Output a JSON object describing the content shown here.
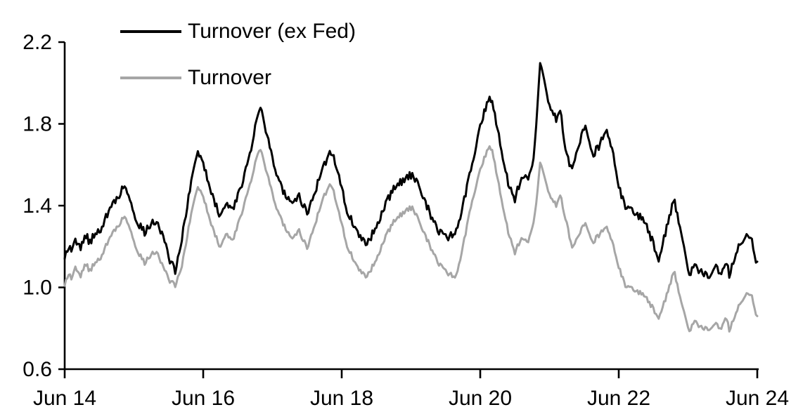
{
  "chart_data": {
    "type": "line",
    "title": "",
    "xlabel": "",
    "ylabel": "",
    "grid": false,
    "background": "#ffffff",
    "axis_color": "#000000",
    "x_axis": {
      "tick_labels": [
        "Jun 14",
        "Jun 16",
        "Jun 18",
        "Jun 20",
        "Jun 22",
        "Jun 24"
      ],
      "tick_years": [
        0,
        2,
        4,
        6,
        8,
        10
      ],
      "range_years": [
        0,
        10
      ]
    },
    "y_axis": {
      "tick_labels": [
        "0.6",
        "1.0",
        "1.4",
        "1.8",
        "2.2"
      ],
      "ticks": [
        0.6,
        1.0,
        1.4,
        1.8,
        2.2
      ],
      "range": [
        0.6,
        2.2
      ]
    },
    "legend": {
      "position": "top-left"
    },
    "x": [
      0,
      0.06,
      0.1,
      0.16,
      0.22,
      0.3,
      0.36,
      0.44,
      0.52,
      0.62,
      0.72,
      0.87,
      0.95,
      1.05,
      1.15,
      1.25,
      1.33,
      1.42,
      1.52,
      1.6,
      1.7,
      1.8,
      1.9,
      1.94,
      2.02,
      2.12,
      2.25,
      2.33,
      2.42,
      2.55,
      2.67,
      2.8,
      2.86,
      2.95,
      3.05,
      3.17,
      3.28,
      3.38,
      3.5,
      3.62,
      3.75,
      3.85,
      3.95,
      4.08,
      4.22,
      4.35,
      4.48,
      4.62,
      4.75,
      4.93,
      5.02,
      5.12,
      5.25,
      5.4,
      5.52,
      5.65,
      5.75,
      5.88,
      6.02,
      6.12,
      6.17,
      6.28,
      6.4,
      6.5,
      6.6,
      6.68,
      6.76,
      6.82,
      6.87,
      6.92,
      6.97,
      7.03,
      7.1,
      7.16,
      7.25,
      7.33,
      7.42,
      7.52,
      7.62,
      7.7,
      7.82,
      7.92,
      8.02,
      8.1,
      8.2,
      8.32,
      8.42,
      8.52,
      8.58,
      8.68,
      8.8,
      8.9,
      9.02,
      9.1,
      9.2,
      9.3,
      9.4,
      9.48,
      9.54,
      9.6,
      9.7,
      9.78,
      9.86,
      9.93,
      10
    ],
    "series": [
      {
        "name": "Turnover (ex Fed)",
        "color": "#000000",
        "values": [
          1.16,
          1.2,
          1.18,
          1.23,
          1.19,
          1.26,
          1.22,
          1.26,
          1.29,
          1.36,
          1.42,
          1.5,
          1.42,
          1.32,
          1.27,
          1.31,
          1.33,
          1.25,
          1.13,
          1.08,
          1.26,
          1.46,
          1.64,
          1.66,
          1.58,
          1.47,
          1.34,
          1.42,
          1.37,
          1.5,
          1.65,
          1.88,
          1.84,
          1.7,
          1.57,
          1.46,
          1.4,
          1.45,
          1.36,
          1.48,
          1.6,
          1.67,
          1.56,
          1.37,
          1.27,
          1.21,
          1.28,
          1.4,
          1.48,
          1.54,
          1.55,
          1.49,
          1.38,
          1.28,
          1.24,
          1.27,
          1.4,
          1.6,
          1.82,
          1.93,
          1.92,
          1.72,
          1.52,
          1.43,
          1.55,
          1.52,
          1.6,
          1.86,
          2.11,
          2.02,
          1.92,
          1.86,
          1.82,
          1.86,
          1.64,
          1.58,
          1.7,
          1.8,
          1.65,
          1.68,
          1.79,
          1.64,
          1.47,
          1.4,
          1.37,
          1.34,
          1.29,
          1.19,
          1.14,
          1.28,
          1.43,
          1.25,
          1.06,
          1.1,
          1.07,
          1.06,
          1.1,
          1.07,
          1.13,
          1.06,
          1.17,
          1.23,
          1.27,
          1.22,
          1.11
        ]
      },
      {
        "name": "Turnover",
        "color": "#a6a6a6",
        "values": [
          1.02,
          1.07,
          1.04,
          1.1,
          1.05,
          1.12,
          1.08,
          1.12,
          1.15,
          1.22,
          1.28,
          1.35,
          1.28,
          1.18,
          1.12,
          1.16,
          1.18,
          1.1,
          1.03,
          1.01,
          1.12,
          1.31,
          1.47,
          1.49,
          1.42,
          1.31,
          1.19,
          1.27,
          1.22,
          1.36,
          1.5,
          1.68,
          1.64,
          1.52,
          1.4,
          1.3,
          1.23,
          1.28,
          1.19,
          1.32,
          1.45,
          1.51,
          1.38,
          1.2,
          1.1,
          1.05,
          1.12,
          1.24,
          1.32,
          1.38,
          1.39,
          1.32,
          1.22,
          1.12,
          1.07,
          1.05,
          1.2,
          1.42,
          1.6,
          1.69,
          1.68,
          1.48,
          1.28,
          1.17,
          1.25,
          1.21,
          1.3,
          1.45,
          1.62,
          1.55,
          1.48,
          1.43,
          1.4,
          1.45,
          1.31,
          1.19,
          1.26,
          1.32,
          1.22,
          1.25,
          1.31,
          1.2,
          1.08,
          1.01,
          0.99,
          0.97,
          0.94,
          0.88,
          0.855,
          0.95,
          1.08,
          0.92,
          0.785,
          0.83,
          0.8,
          0.8,
          0.82,
          0.8,
          0.86,
          0.79,
          0.88,
          0.94,
          0.98,
          0.95,
          0.85
        ]
      }
    ],
    "render": {
      "samples_per_year": 52,
      "jitter_seed": 7,
      "jitter_amp": [
        0.02,
        0.012
      ]
    }
  }
}
